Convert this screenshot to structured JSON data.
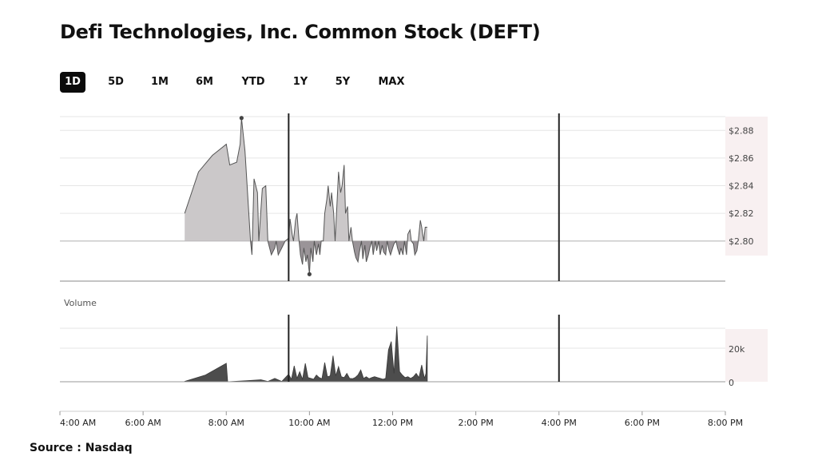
{
  "page": {
    "title": "Defi Technologies, Inc. Common Stock (DEFT)",
    "source": "Source : Nasdaq"
  },
  "ranges": {
    "items": [
      "1D",
      "5D",
      "1M",
      "6M",
      "YTD",
      "1Y",
      "5Y",
      "MAX"
    ],
    "active": "1D"
  },
  "colors": {
    "above_fill": "#cbc8c9",
    "below_fill": "#9a9498",
    "line": "#555555",
    "volume_fill": "#4d4d4d",
    "gutter": "#f8f0f1",
    "session_marker": "#222222",
    "active_button": "#0b0b0b"
  },
  "chart_data": [
    {
      "type": "area",
      "title": "",
      "xlabel": "",
      "ylabel": "",
      "x_ticks": [
        "4:00 AM",
        "6:00 AM",
        "8:00 AM",
        "10:00 AM",
        "12:00 PM",
        "2:00 PM",
        "4:00 PM",
        "6:00 PM",
        "8:00 PM"
      ],
      "y_ticks": [
        "$2.80",
        "$2.82",
        "$2.84",
        "$2.86",
        "$2.88"
      ],
      "xlim": [
        "4:00 AM",
        "8:00 PM"
      ],
      "ylim": [
        2.771,
        2.89
      ],
      "baseline": 2.8,
      "session_markers": [
        "9:30 AM",
        "4:00 PM"
      ],
      "grid": true,
      "series": [
        {
          "x": [
            "7:00 AM",
            "7:20 AM",
            "7:40 AM",
            "8:00 AM",
            "8:05 AM",
            "8:15 AM",
            "8:20 AM",
            "8:22 AM",
            "8:27 AM",
            "8:35 AM",
            "8:37 AM",
            "8:40 AM",
            "8:45 AM",
            "8:47 AM",
            "8:52 AM",
            "8:57 AM",
            "9:00 AM",
            "9:05 AM",
            "9:10 AM",
            "9:12 AM",
            "9:15 AM",
            "9:20 AM",
            "9:25 AM",
            "9:30 AM",
            "9:32 AM",
            "9:35 AM",
            "9:37 AM",
            "9:40 AM",
            "9:42 AM",
            "9:45 AM",
            "9:47 AM",
            "9:50 AM",
            "9:52 AM",
            "9:55 AM",
            "9:57 AM",
            "10:00 AM",
            "10:02 AM",
            "10:05 AM",
            "10:07 AM",
            "10:10 AM",
            "10:13 AM",
            "10:15 AM",
            "10:17 AM",
            "10:20 AM",
            "10:22 AM",
            "10:25 AM",
            "10:27 AM",
            "10:30 AM",
            "10:32 AM",
            "10:35 AM",
            "10:37 AM",
            "10:40 AM",
            "10:42 AM",
            "10:45 AM",
            "10:47 AM",
            "10:50 AM",
            "10:52 AM",
            "10:55 AM",
            "10:57 AM",
            "11:00 AM",
            "11:02 AM",
            "11:05 AM",
            "11:07 AM",
            "11:10 AM",
            "11:12 AM",
            "11:15 AM",
            "11:17 AM",
            "11:20 AM",
            "11:22 AM",
            "11:25 AM",
            "11:27 AM",
            "11:30 AM",
            "11:32 AM",
            "11:35 AM",
            "11:37 AM",
            "11:40 AM",
            "11:42 AM",
            "11:45 AM",
            "11:47 AM",
            "11:50 AM",
            "11:52 AM",
            "11:55 AM",
            "11:57 AM",
            "12:00 PM",
            "12:02 PM",
            "12:05 PM",
            "12:07 PM",
            "12:10 PM",
            "12:12 PM",
            "12:15 PM",
            "12:17 PM",
            "12:20 PM",
            "12:22 PM",
            "12:25 PM",
            "12:27 PM",
            "12:30 PM",
            "12:32 PM",
            "12:35 PM",
            "12:37 PM",
            "12:40 PM",
            "12:42 PM",
            "12:45 PM",
            "12:47 PM",
            "12:50 PM"
          ],
          "values": [
            2.82,
            2.85,
            2.862,
            2.87,
            2.855,
            2.857,
            2.87,
            2.889,
            2.865,
            2.8,
            2.79,
            2.845,
            2.835,
            2.8,
            2.838,
            2.84,
            2.8,
            2.79,
            2.795,
            2.8,
            2.79,
            2.795,
            2.8,
            2.802,
            2.816,
            2.805,
            2.8,
            2.815,
            2.82,
            2.8,
            2.79,
            2.783,
            2.795,
            2.785,
            2.79,
            2.776,
            2.795,
            2.785,
            2.8,
            2.79,
            2.798,
            2.79,
            2.8,
            2.8,
            2.82,
            2.83,
            2.84,
            2.825,
            2.835,
            2.82,
            2.8,
            2.83,
            2.85,
            2.835,
            2.84,
            2.855,
            2.82,
            2.825,
            2.8,
            2.81,
            2.8,
            2.792,
            2.788,
            2.785,
            2.792,
            2.8,
            2.787,
            2.797,
            2.785,
            2.79,
            2.795,
            2.8,
            2.79,
            2.8,
            2.793,
            2.8,
            2.79,
            2.797,
            2.792,
            2.79,
            2.8,
            2.793,
            2.79,
            2.795,
            2.798,
            2.8,
            2.795,
            2.79,
            2.795,
            2.79,
            2.8,
            2.79,
            2.805,
            2.808,
            2.8,
            2.798,
            2.79,
            2.793,
            2.8,
            2.815,
            2.81,
            2.8,
            2.81,
            2.81
          ]
        }
      ],
      "markers": [
        {
          "label": "high",
          "x": "8:22 AM",
          "y": 2.889
        },
        {
          "label": "low",
          "x": "10:00 AM",
          "y": 2.776
        }
      ]
    },
    {
      "type": "bar",
      "title": "Volume",
      "y_ticks": [
        "0",
        "20k"
      ],
      "ylim": [
        0,
        40000
      ],
      "session_markers": [
        "9:30 AM",
        "4:00 PM"
      ],
      "grid": true,
      "series": [
        {
          "name": "Volume",
          "x": [
            "7:00 AM",
            "7:30 AM",
            "8:00 AM",
            "8:02 AM",
            "8:30 AM",
            "8:50 AM",
            "9:00 AM",
            "9:10 AM",
            "9:20 AM",
            "9:30 AM",
            "9:34 AM",
            "9:38 AM",
            "9:42 AM",
            "9:46 AM",
            "9:50 AM",
            "9:54 AM",
            "9:58 AM",
            "10:02 AM",
            "10:06 AM",
            "10:10 AM",
            "10:14 AM",
            "10:18 AM",
            "10:22 AM",
            "10:26 AM",
            "10:30 AM",
            "10:34 AM",
            "10:38 AM",
            "10:42 AM",
            "10:46 AM",
            "10:50 AM",
            "10:54 AM",
            "10:58 AM",
            "11:02 AM",
            "11:06 AM",
            "11:10 AM",
            "11:14 AM",
            "11:18 AM",
            "11:22 AM",
            "11:26 AM",
            "11:30 AM",
            "11:34 AM",
            "11:38 AM",
            "11:42 AM",
            "11:46 AM",
            "11:50 AM",
            "11:54 AM",
            "11:58 AM",
            "12:02 PM",
            "12:06 PM",
            "12:10 PM",
            "12:14 PM",
            "12:18 PM",
            "12:22 PM",
            "12:26 PM",
            "12:30 PM",
            "12:34 PM",
            "12:38 PM",
            "12:42 PM",
            "12:46 PM",
            "12:48 PM",
            "12:50 PM"
          ],
          "values": [
            200,
            4000,
            11000,
            0,
            600,
            1200,
            200,
            2000,
            200,
            4500,
            1500,
            9500,
            2000,
            6000,
            1500,
            11000,
            2500,
            2000,
            1500,
            4000,
            2500,
            1800,
            11500,
            3000,
            3500,
            15500,
            3500,
            9000,
            3000,
            2500,
            5000,
            2000,
            1800,
            2500,
            4000,
            7000,
            2000,
            3000,
            1800,
            2500,
            3000,
            2500,
            2000,
            1500,
            2000,
            19000,
            24000,
            5000,
            33000,
            6000,
            4000,
            2500,
            3000,
            2000,
            3000,
            5000,
            2500,
            10000,
            2000,
            5000,
            27500
          ]
        }
      ]
    }
  ]
}
